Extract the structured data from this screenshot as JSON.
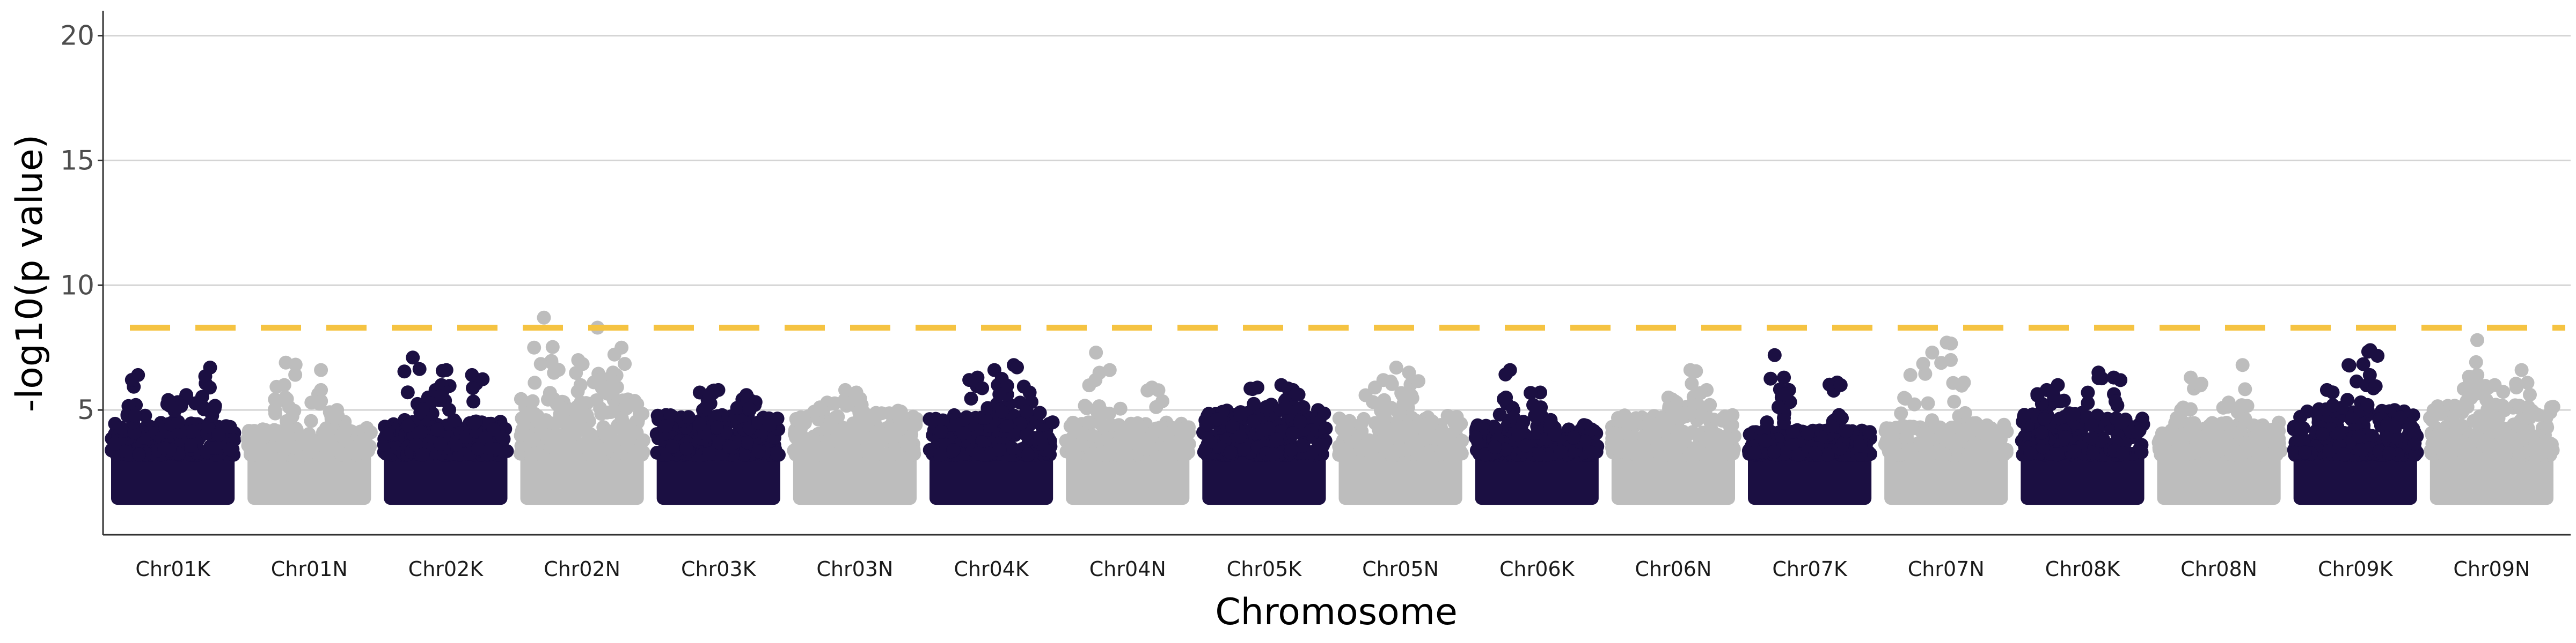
{
  "chart_data": {
    "type": "scatter",
    "xlabel": "Chromosome",
    "ylabel": "-log10(p value)",
    "ylim": [
      0,
      21
    ],
    "yticks": [
      5,
      10,
      15,
      20
    ],
    "grid": "horizontal major lines",
    "threshold": {
      "value": 8.3,
      "style": "dashed",
      "color": "#f5c342"
    },
    "colors": {
      "odd": "#1b0f42",
      "even": "#bdbdbd",
      "grid": "#d4d4d4",
      "axis": "#333333"
    },
    "point_floor": 1.2,
    "chromosomes": [
      {
        "name": "Chr01K",
        "dense_max": 4.5,
        "peaks": [
          6.7,
          6.4,
          5.9,
          5.6,
          5.4,
          5.2
        ]
      },
      {
        "name": "Chr01N",
        "dense_max": 4.3,
        "peaks": [
          6.9,
          6.6,
          6.0,
          5.8,
          5.5,
          5.0
        ]
      },
      {
        "name": "Chr02K",
        "dense_max": 4.6,
        "peaks": [
          7.1,
          6.6,
          6.4,
          6.0,
          5.8,
          5.5
        ]
      },
      {
        "name": "Chr02N",
        "dense_max": 5.5,
        "peaks": [
          8.7,
          8.3,
          7.5,
          7.0,
          6.9,
          6.5,
          6.2
        ]
      },
      {
        "name": "Chr03K",
        "dense_max": 4.8,
        "peaks": [
          5.8,
          5.7,
          5.6,
          5.4
        ]
      },
      {
        "name": "Chr03N",
        "dense_max": 5.0,
        "peaks": [
          5.8,
          5.7,
          5.5,
          5.3
        ]
      },
      {
        "name": "Chr04K",
        "dense_max": 4.8,
        "peaks": [
          6.8,
          6.6,
          6.3,
          6.0,
          5.7
        ]
      },
      {
        "name": "Chr04N",
        "dense_max": 4.5,
        "peaks": [
          7.3,
          6.6,
          6.2,
          5.9
        ]
      },
      {
        "name": "Chr05K",
        "dense_max": 5.0,
        "peaks": [
          6.0,
          5.9,
          5.8,
          5.6
        ]
      },
      {
        "name": "Chr05N",
        "dense_max": 4.8,
        "peaks": [
          6.7,
          6.5,
          6.2,
          5.9,
          5.6
        ]
      },
      {
        "name": "Chr06K",
        "dense_max": 4.4,
        "peaks": [
          6.6,
          5.7,
          5.5,
          5.2
        ]
      },
      {
        "name": "Chr06N",
        "dense_max": 4.8,
        "peaks": [
          6.6,
          5.8,
          5.5,
          5.3
        ]
      },
      {
        "name": "Chr07K",
        "dense_max": 4.2,
        "peaks": [
          7.2,
          6.3,
          6.1,
          6.0,
          5.8
        ]
      },
      {
        "name": "Chr07N",
        "dense_max": 4.5,
        "peaks": [
          7.7,
          7.3,
          6.4,
          6.1
        ]
      },
      {
        "name": "Chr08K",
        "dense_max": 4.9,
        "peaks": [
          6.5,
          6.3,
          6.0,
          5.8
        ]
      },
      {
        "name": "Chr08N",
        "dense_max": 4.5,
        "peaks": [
          6.8,
          6.3,
          5.3,
          5.1
        ]
      },
      {
        "name": "Chr09K",
        "dense_max": 5.0,
        "peaks": [
          7.4,
          6.8,
          6.4,
          5.8
        ]
      },
      {
        "name": "Chr09N",
        "dense_max": 5.2,
        "peaks": [
          7.8,
          6.6,
          6.4,
          6.2,
          6.0
        ]
      }
    ]
  }
}
